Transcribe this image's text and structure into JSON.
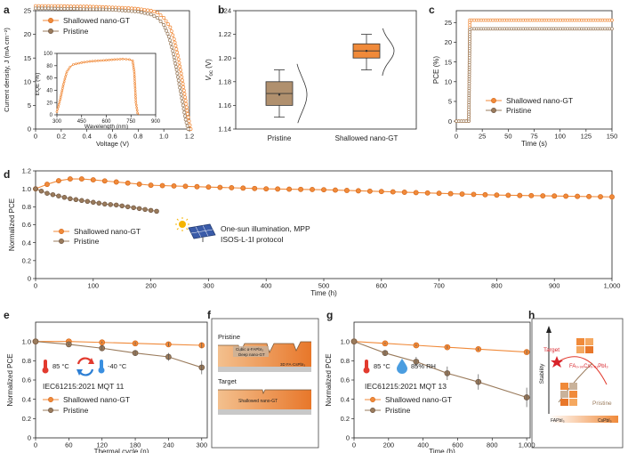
{
  "colors": {
    "orange": "#f08a3a",
    "brown": "#9a7b5c",
    "orange_dark": "#d86a1c",
    "brown_dark": "#6d5440"
  },
  "chart_data": [
    {
      "panel": "a",
      "type": "line",
      "xlabel": "Voltage (V)",
      "ylabel": "Current density, J (mA cm⁻²)",
      "xlim": [
        0,
        1.2
      ],
      "ylim": [
        0,
        25
      ],
      "xticks": [
        "0",
        "0.2",
        "0.4",
        "0.6",
        "0.8",
        "1.0",
        "1.2"
      ],
      "yticks": [
        "0",
        "5",
        "10",
        "15",
        "20",
        "25"
      ],
      "series": [
        {
          "name": "Shallowed nano-GT",
          "x": [
            0,
            0.1,
            0.2,
            0.3,
            0.4,
            0.5,
            0.6,
            0.7,
            0.8,
            0.9,
            0.95,
            1.0,
            1.05,
            1.08,
            1.11,
            1.14,
            1.17,
            1.19,
            1.21
          ],
          "y": [
            26.0,
            26.0,
            26.0,
            25.9,
            25.9,
            25.8,
            25.7,
            25.6,
            25.4,
            25.0,
            24.6,
            23.5,
            21.5,
            19.0,
            15.5,
            11.0,
            6.0,
            2.5,
            0
          ]
        },
        {
          "name": "Pristine",
          "x": [
            0,
            0.1,
            0.2,
            0.3,
            0.4,
            0.5,
            0.6,
            0.7,
            0.8,
            0.9,
            0.95,
            1.0,
            1.04,
            1.07,
            1.1,
            1.13,
            1.15,
            1.17,
            1.19
          ],
          "y": [
            25.5,
            25.5,
            25.4,
            25.4,
            25.3,
            25.3,
            25.2,
            25.0,
            24.8,
            24.2,
            23.5,
            22.0,
            19.5,
            16.5,
            12.5,
            8.0,
            5.0,
            2.0,
            0
          ]
        }
      ],
      "inset": {
        "xlabel": "Wavelength (nm)",
        "ylabel": "EQE (%)",
        "xlim": [
          300,
          900
        ],
        "ylim": [
          0,
          100
        ],
        "xticks": [
          "300",
          "450",
          "600",
          "750",
          "900"
        ],
        "yticks": [
          "0",
          "20",
          "40",
          "60",
          "80",
          "100"
        ],
        "x": [
          300,
          320,
          340,
          360,
          380,
          400,
          450,
          500,
          550,
          600,
          650,
          700,
          740,
          760,
          770,
          780,
          790,
          800
        ],
        "y": [
          5,
          25,
          50,
          70,
          78,
          82,
          85,
          87,
          88,
          89,
          90,
          91,
          90,
          88,
          70,
          20,
          3,
          0
        ]
      }
    },
    {
      "panel": "b",
      "type": "box",
      "ylabel": "V_oc (V)",
      "ylim": [
        1.14,
        1.24
      ],
      "yticks": [
        "1.14",
        "1.16",
        "1.18",
        "1.20",
        "1.22",
        "1.24"
      ],
      "categories": [
        "Pristine",
        "Shallowed nano-GT"
      ],
      "boxes": [
        {
          "name": "Pristine",
          "min": 1.15,
          "q1": 1.16,
          "median": 1.17,
          "q3": 1.18,
          "max": 1.19,
          "mean": 1.169
        },
        {
          "name": "Shallowed nano-GT",
          "min": 1.19,
          "q1": 1.2,
          "median": 1.206,
          "q3": 1.212,
          "max": 1.22,
          "mean": 1.206
        }
      ]
    },
    {
      "panel": "c",
      "type": "line",
      "xlabel": "Time (s)",
      "ylabel": "PCE (%)",
      "xlim": [
        0,
        150
      ],
      "ylim": [
        -2,
        28
      ],
      "xticks": [
        "0",
        "25",
        "50",
        "75",
        "100",
        "125",
        "150"
      ],
      "yticks": [
        "0",
        "5",
        "10",
        "15",
        "20",
        "25"
      ],
      "series": [
        {
          "name": "Shallowed nano-GT",
          "x": [
            0,
            12,
            13,
            15,
            150
          ],
          "y": [
            0,
            0,
            25.6,
            25.6,
            25.6
          ]
        },
        {
          "name": "Pristine",
          "x": [
            0,
            12,
            13,
            15,
            150
          ],
          "y": [
            0,
            0,
            23.2,
            23.4,
            23.4
          ]
        }
      ]
    },
    {
      "panel": "d",
      "type": "line",
      "xlabel": "Time (h)",
      "ylabel": "Normalized PCE",
      "xlim": [
        0,
        1000
      ],
      "ylim": [
        0,
        1.2
      ],
      "xticks": [
        "0",
        "100",
        "200",
        "300",
        "400",
        "500",
        "600",
        "700",
        "800",
        "900",
        "1,000"
      ],
      "yticks": [
        "0",
        "0.2",
        "0.4",
        "0.6",
        "0.8",
        "1.0",
        "1.2"
      ],
      "annotation": [
        "One-sun illumination, MPP",
        "ISOS-L-1I protocol"
      ],
      "series": [
        {
          "name": "Shallowed nano-GT",
          "x": [
            0,
            20,
            40,
            60,
            80,
            100,
            150,
            200,
            300,
            400,
            500,
            600,
            700,
            800,
            900,
            1000
          ],
          "y": [
            1.0,
            1.05,
            1.09,
            1.11,
            1.11,
            1.1,
            1.07,
            1.04,
            1.02,
            1.0,
            0.99,
            0.97,
            0.95,
            0.93,
            0.92,
            0.91
          ]
        },
        {
          "name": "Pristine",
          "x": [
            0,
            20,
            40,
            60,
            80,
            100,
            120,
            140,
            160,
            180,
            200,
            210
          ],
          "y": [
            1.0,
            0.95,
            0.92,
            0.89,
            0.87,
            0.85,
            0.83,
            0.82,
            0.8,
            0.78,
            0.76,
            0.75
          ]
        }
      ]
    },
    {
      "panel": "e",
      "type": "line",
      "xlabel": "Thermal cycle (n)",
      "ylabel": "Normalized PCE",
      "xlim": [
        0,
        310
      ],
      "ylim": [
        0,
        1.2
      ],
      "xticks": [
        "0",
        "60",
        "120",
        "180",
        "240",
        "300"
      ],
      "yticks": [
        "0",
        "0.2",
        "0.4",
        "0.6",
        "0.8",
        "1.0"
      ],
      "annotation": [
        "85 °C",
        "-40 °C",
        "IEC61215:2021 MQT 11"
      ],
      "series": [
        {
          "name": "Shallowed nano-GT",
          "x": [
            0,
            60,
            120,
            180,
            240,
            300
          ],
          "y": [
            1.0,
            1.0,
            0.99,
            0.98,
            0.97,
            0.96
          ]
        },
        {
          "name": "Pristine",
          "x": [
            0,
            60,
            120,
            180,
            240,
            300
          ],
          "y": [
            1.0,
            0.97,
            0.93,
            0.88,
            0.84,
            0.73
          ]
        }
      ]
    },
    {
      "panel": "g",
      "type": "line",
      "xlabel": "Time (h)",
      "ylabel": "Normalized PCE",
      "xlim": [
        0,
        1020
      ],
      "ylim": [
        0,
        1.2
      ],
      "xticks": [
        "0",
        "200",
        "400",
        "600",
        "800",
        "1,000"
      ],
      "yticks": [
        "0",
        "0.2",
        "0.4",
        "0.6",
        "0.8",
        "1.0"
      ],
      "annotation": [
        "85 °C",
        "85% RH",
        "IEC61215:2021 MQT 13"
      ],
      "series": [
        {
          "name": "Shallowed nano-GT",
          "x": [
            0,
            180,
            360,
            540,
            720,
            1000
          ],
          "y": [
            1.0,
            0.98,
            0.96,
            0.94,
            0.92,
            0.89
          ]
        },
        {
          "name": "Pristine",
          "x": [
            0,
            180,
            360,
            540,
            720,
            1000
          ],
          "y": [
            1.0,
            0.88,
            0.79,
            0.67,
            0.58,
            0.42
          ]
        }
      ]
    }
  ],
  "panel_f": {
    "titles": [
      "Pristine",
      "Target"
    ],
    "layer_labels": [
      "Cubic α-FAPbI₃",
      "Deep nano-GT",
      "3D FA·CsPbI₃",
      "Shallowed nano-GT"
    ]
  },
  "panel_h": {
    "ylabel": "Stability",
    "labels": [
      "Target",
      "FA₀.₉₉Cs₀.₀₁PbI₃",
      "Pristine",
      "FAPbI₃",
      "CsPbI₃"
    ]
  },
  "panel_labels": [
    "a",
    "b",
    "c",
    "d",
    "e",
    "f",
    "g",
    "h"
  ]
}
